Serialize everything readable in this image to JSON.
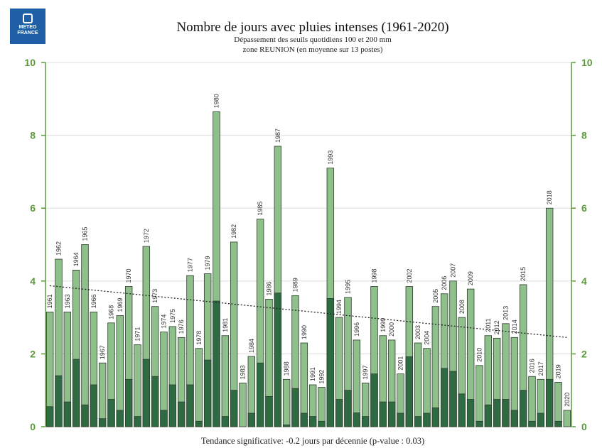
{
  "logo": {
    "line1": "METEO",
    "line2": "FRANCE"
  },
  "chart_data": {
    "type": "bar",
    "title": "Nombre de jours avec pluies intenses (1961-2020)",
    "subtitle_1": "Dépassement des seuils quotidiens 100 et 200 mm",
    "subtitle_2": "zone REUNION (en moyenne sur 13 postes)",
    "footer": "Tendance significative: -0.2 jours par décennie (p-value : 0.03)",
    "categories": [
      "1961",
      "1962",
      "1963",
      "1964",
      "1965",
      "1966",
      "1967",
      "1968",
      "1969",
      "1970",
      "1971",
      "1972",
      "1973",
      "1974",
      "1975",
      "1976",
      "1977",
      "1978",
      "1979",
      "1980",
      "1981",
      "1982",
      "1983",
      "1984",
      "1985",
      "1986",
      "1987",
      "1988",
      "1989",
      "1990",
      "1991",
      "1992",
      "1993",
      "1994",
      "1995",
      "1996",
      "1997",
      "1998",
      "1999",
      "2000",
      "2001",
      "2002",
      "2003",
      "2004",
      "2005",
      "2006",
      "2007",
      "2008",
      "2009",
      "2010",
      "2011",
      "2012",
      "2013",
      "2014",
      "2015",
      "2016",
      "2017",
      "2018",
      "2019",
      "2020"
    ],
    "series": [
      {
        "values": [
          3.15,
          4.6,
          3.15,
          4.3,
          5.0,
          3.15,
          1.75,
          2.85,
          3.05,
          3.85,
          2.25,
          4.95,
          3.3,
          2.6,
          2.75,
          2.45,
          4.15,
          2.15,
          4.2,
          8.65,
          2.5,
          5.07,
          1.2,
          1.93,
          5.7,
          3.5,
          7.7,
          1.3,
          3.6,
          2.3,
          1.15,
          1.08,
          7.1,
          3.0,
          3.55,
          2.38,
          1.2,
          3.85,
          2.5,
          2.38,
          1.45,
          3.85,
          2.3,
          2.15,
          3.3,
          3.65,
          4.0,
          3.0,
          3.78,
          1.68,
          2.5,
          2.43,
          2.83,
          2.45,
          3.9,
          1.38,
          1.3,
          6.0,
          1.22,
          0.45
        ]
      },
      {
        "values": [
          0.55,
          1.4,
          0.68,
          1.85,
          0.6,
          1.15,
          0.22,
          0.75,
          0.45,
          1.3,
          0.28,
          1.85,
          1.38,
          0.45,
          1.15,
          0.68,
          1.15,
          0.15,
          1.83,
          3.45,
          0.28,
          1.0,
          0.0,
          0.37,
          1.75,
          0.83,
          3.67,
          0.05,
          1.05,
          0.37,
          0.28,
          0.15,
          3.52,
          0.75,
          1.0,
          0.38,
          0.28,
          1.45,
          0.68,
          0.68,
          0.37,
          1.92,
          0.28,
          0.37,
          0.52,
          1.6,
          1.52,
          0.9,
          0.75,
          0.15,
          0.6,
          0.75,
          0.75,
          0.45,
          1.0,
          0.15,
          0.37,
          1.3,
          0.15,
          0.0
        ]
      }
    ],
    "trend": {
      "start": 3.87,
      "end": 2.45
    },
    "ylim": [
      0,
      10
    ],
    "yticks": [
      0,
      2,
      4,
      6,
      8,
      10
    ],
    "grid": true,
    "colors": {
      "total": "#8fc08c",
      "heavy": "#2e6b42",
      "border": "#2b3b2b",
      "axis": "#5c9a3c",
      "grid": "#dddddd"
    }
  }
}
